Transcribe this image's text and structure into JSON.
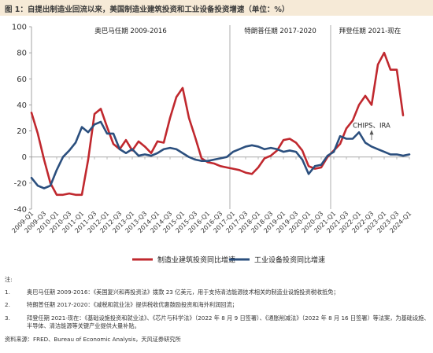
{
  "figure_title": "图 1：自提出制造业回流以来，美国制造业建筑投资和工业设备投资增速（单位：%）",
  "chart_data": {
    "type": "line",
    "x": [
      "2009-Q1",
      "2009-Q2",
      "2009-Q3",
      "2009-Q4",
      "2010-Q1",
      "2010-Q2",
      "2010-Q3",
      "2010-Q4",
      "2011-Q1",
      "2011-Q2",
      "2011-Q3",
      "2011-Q4",
      "2012-Q1",
      "2012-Q2",
      "2012-Q3",
      "2012-Q4",
      "2013-Q1",
      "2013-Q2",
      "2013-Q3",
      "2013-Q4",
      "2014-Q1",
      "2014-Q2",
      "2014-Q3",
      "2014-Q4",
      "2015-Q1",
      "2015-Q2",
      "2015-Q3",
      "2015-Q4",
      "2016-Q1",
      "2016-Q2",
      "2016-Q3",
      "2016-Q4",
      "2017-Q1",
      "2017-Q2",
      "2017-Q3",
      "2017-Q4",
      "2018-Q1",
      "2018-Q2",
      "2018-Q3",
      "2018-Q4",
      "2019-Q1",
      "2019-Q2",
      "2019-Q3",
      "2019-Q4",
      "2020-Q1",
      "2020-Q2",
      "2020-Q3",
      "2020-Q4",
      "2021-Q1",
      "2021-Q2",
      "2021-Q3",
      "2021-Q4",
      "2022-Q1",
      "2022-Q2",
      "2022-Q3",
      "2022-Q4",
      "2023-Q1",
      "2023-Q2",
      "2023-Q3",
      "2023-Q4",
      "2024-Q1"
    ],
    "x_tick_labels": [
      "2009-Q1",
      "2009-Q3",
      "2010-Q1",
      "2010-Q3",
      "2011-Q1",
      "2011-Q3",
      "2012-Q1",
      "2012-Q3",
      "2013-Q1",
      "2013-Q3",
      "2014-Q1",
      "2014-Q3",
      "2015-Q1",
      "2015-Q3",
      "2016-Q1",
      "2016-Q3",
      "2017-Q1",
      "2017-Q3",
      "2018-Q1",
      "2018-Q3",
      "2019-Q1",
      "2019-Q3",
      "2020-Q1",
      "2020-Q3",
      "2021-Q1",
      "2021-Q3",
      "2022-Q1",
      "2022-Q3",
      "2023-Q1",
      "2023-Q3",
      "2024-Q1"
    ],
    "ylim": [
      -40,
      100
    ],
    "y_ticks": [
      -40,
      -20,
      0,
      20,
      40,
      60,
      80,
      100
    ],
    "grid": false,
    "legend_position": "bottom",
    "series": [
      {
        "name": "制造业建筑投资同比增速",
        "color": "#c0282e",
        "values": [
          34,
          18,
          -2,
          -20,
          -29,
          -29,
          -28,
          -29,
          -29,
          -2,
          33,
          37,
          23,
          10,
          6,
          13,
          5,
          12,
          8,
          3,
          12,
          11,
          30,
          46,
          53,
          30,
          15,
          -1,
          -4,
          -5,
          -7,
          -8,
          -9,
          -10,
          -12,
          -13,
          -8,
          -1,
          1,
          5,
          13,
          14,
          11,
          5,
          -7,
          -9,
          -8,
          0,
          5,
          10,
          22,
          28,
          40,
          47,
          40,
          71,
          80,
          67,
          67,
          32,
          null
        ]
      },
      {
        "name": "工业设备投资同比增速",
        "color": "#2b4f7e",
        "values": [
          -16,
          -22,
          -24,
          -22,
          -10,
          0,
          5,
          11,
          23,
          19,
          25,
          27,
          18,
          18,
          6,
          3,
          6,
          1,
          2,
          1,
          3,
          6,
          7,
          6,
          3,
          0,
          -2,
          -3,
          -3,
          -2,
          -1,
          0,
          4,
          6,
          8,
          9,
          8,
          6,
          7,
          6,
          4,
          5,
          4,
          -2,
          -13,
          -7,
          -6,
          1,
          4,
          16,
          14,
          14,
          19,
          11,
          8,
          6,
          4,
          2,
          2,
          1,
          2
        ]
      }
    ],
    "period_labels": [
      "奥巴马任期 2009-2016",
      "特朗普任期 2017-2020",
      "拜登任期 2021-现在"
    ],
    "period_boundaries": [
      "2016-Q4/2017-Q1",
      "2020-Q4/2021-Q1"
    ],
    "annotation": {
      "text": "CHIPS、IRA",
      "x": "2022-Q3",
      "y": 22
    }
  },
  "notes": {
    "title": "注:",
    "items": [
      {
        "num": "1.",
        "text": "奥巴马任期 2009-2016：《美国复兴和再投资法》拨款 23 亿美元，用于支持清洁能源技术相关的制造业设施投资税收抵免；"
      },
      {
        "num": "2.",
        "text": "特朗普任期 2017-2020：《减税和就业法》提供税收优惠鼓励投资和海外利润回流；"
      },
      {
        "num": "3.",
        "text": "拜登任期 2021-现在：《基础设施投资和就业法》、《芯片与科学法》（2022 年 8 月 9 日签署）、《通胀削减法》（2022 年 8 月 16 日签署）等法案，为基础设施、半导体、清洁能源等关键产业提供大量补贴。"
      }
    ],
    "source": "资料来源：FRED、Bureau of Economic Analysis，天风证券研究所"
  }
}
